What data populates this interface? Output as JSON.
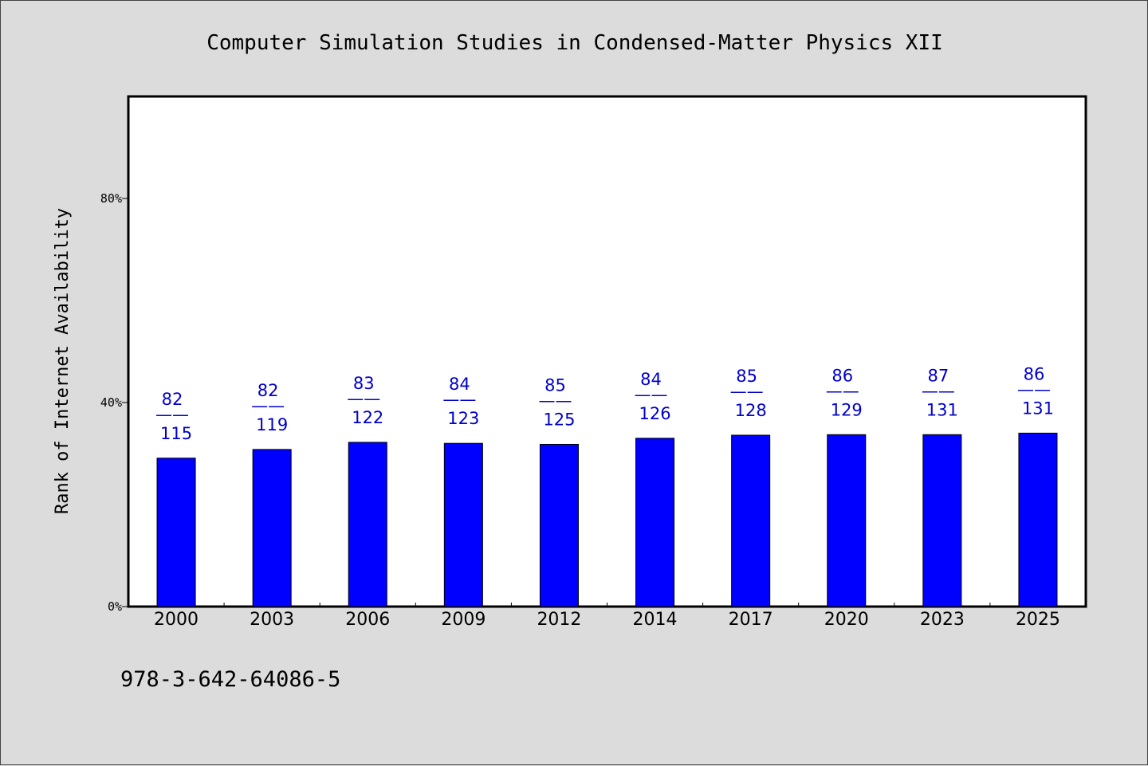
{
  "chart_data": {
    "type": "bar",
    "title": "Computer Simulation Studies in Condensed-Matter Physics XII",
    "ylabel": "Rank of Internet Availability",
    "xlabel": "",
    "categories": [
      "2000",
      "2003",
      "2006",
      "2009",
      "2012",
      "2014",
      "2017",
      "2020",
      "2023",
      "2025"
    ],
    "values": [
      29.1,
      30.8,
      32.2,
      32.0,
      31.8,
      33.0,
      33.6,
      33.7,
      33.7,
      34.0
    ],
    "labels_top": [
      "82",
      "82",
      "83",
      "84",
      "85",
      "84",
      "85",
      "86",
      "87",
      "86"
    ],
    "labels_bottom": [
      "115",
      "119",
      "122",
      "123",
      "125",
      "126",
      "128",
      "129",
      "131",
      "131"
    ],
    "label_separator": "——",
    "ylim": [
      0,
      100
    ],
    "yticks": [
      0,
      40,
      80
    ],
    "ytick_labels": [
      "0%",
      "40%",
      "80%"
    ],
    "grid": false,
    "bar_color": "#0000ff",
    "label_color": "#0000cc"
  },
  "footer": {
    "isbn": "978-3-642-64086-5"
  }
}
